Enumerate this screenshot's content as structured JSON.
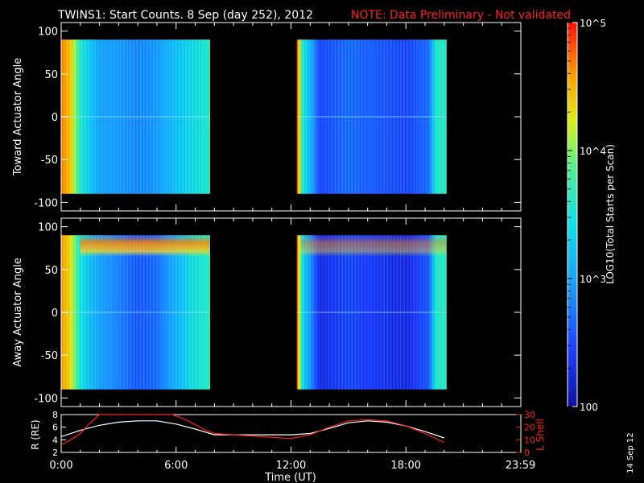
{
  "header": {
    "title": "TWINS1: Start Counts.  8 Sep (day 252), 2012",
    "note": "NOTE: Data Preliminary - Not validated"
  },
  "side_date": "14 Sep 12",
  "colorbar": {
    "label": "LOG10(Total Starts per Scan)",
    "tick_labels": [
      "10^5",
      "10^4",
      "10^3",
      "100"
    ],
    "range": [
      100,
      100000
    ],
    "scale": "log"
  },
  "colors": {
    "background": "#000000",
    "axes": "#ffffff",
    "note": "#ff2020",
    "lshell": "#ff2020"
  },
  "chart_data": [
    {
      "type": "heatmap",
      "panel": "toward",
      "ylabel": "Toward Actuator Angle",
      "ylim": [
        -110,
        110
      ],
      "ytick_labels": [
        "100",
        "50",
        "0",
        "-50",
        "-100"
      ],
      "data_bounds": [
        -90,
        90
      ],
      "xlim": [
        0,
        24
      ],
      "data_intervals_hours": [
        [
          0,
          7.75
        ],
        [
          12.3,
          20.1
        ]
      ],
      "log_counts_profile_by_hour": [
        {
          "t": 0.0,
          "v": 4.7
        },
        {
          "t": 0.5,
          "v": 4.4
        },
        {
          "t": 1.0,
          "v": 3.6
        },
        {
          "t": 1.5,
          "v": 3.25
        },
        {
          "t": 2.0,
          "v": 3.0
        },
        {
          "t": 3.0,
          "v": 2.95
        },
        {
          "t": 4.0,
          "v": 2.85
        },
        {
          "t": 5.0,
          "v": 2.95
        },
        {
          "t": 6.0,
          "v": 3.2
        },
        {
          "t": 7.0,
          "v": 3.45
        },
        {
          "t": 7.75,
          "v": 3.6
        },
        {
          "t": 12.3,
          "v": 4.9
        },
        {
          "t": 12.6,
          "v": 3.6
        },
        {
          "t": 13.5,
          "v": 2.5
        },
        {
          "t": 15.0,
          "v": 2.7
        },
        {
          "t": 16.5,
          "v": 2.6
        },
        {
          "t": 18.0,
          "v": 2.5
        },
        {
          "t": 19.2,
          "v": 2.7
        },
        {
          "t": 19.6,
          "v": 3.6
        },
        {
          "t": 20.1,
          "v": 3.6
        }
      ]
    },
    {
      "type": "heatmap",
      "panel": "away",
      "ylabel": "Away Actuator Angle",
      "ylim": [
        -110,
        110
      ],
      "ytick_labels": [
        "100",
        "50",
        "0",
        "-50",
        "-100"
      ],
      "data_bounds": [
        -90,
        90
      ],
      "xlim": [
        0,
        24
      ],
      "data_intervals_hours": [
        [
          0,
          7.75
        ],
        [
          12.3,
          20.1
        ]
      ],
      "enhanced_band_angle_range": [
        65,
        90
      ],
      "log_counts_profile_by_hour": [
        {
          "t": 0.0,
          "v": 4.6
        },
        {
          "t": 0.5,
          "v": 4.3
        },
        {
          "t": 1.0,
          "v": 3.5
        },
        {
          "t": 1.5,
          "v": 3.2
        },
        {
          "t": 2.0,
          "v": 3.0
        },
        {
          "t": 3.0,
          "v": 2.8
        },
        {
          "t": 4.0,
          "v": 2.6
        },
        {
          "t": 5.0,
          "v": 2.7
        },
        {
          "t": 6.0,
          "v": 3.1
        },
        {
          "t": 7.0,
          "v": 3.5
        },
        {
          "t": 7.75,
          "v": 3.6
        },
        {
          "t": 12.3,
          "v": 4.9
        },
        {
          "t": 12.6,
          "v": 3.4
        },
        {
          "t": 13.5,
          "v": 2.3
        },
        {
          "t": 15.0,
          "v": 2.5
        },
        {
          "t": 16.5,
          "v": 2.4
        },
        {
          "t": 18.0,
          "v": 2.3
        },
        {
          "t": 19.2,
          "v": 2.6
        },
        {
          "t": 19.6,
          "v": 3.6
        },
        {
          "t": 20.1,
          "v": 3.6
        }
      ]
    },
    {
      "type": "line",
      "panel": "orbit",
      "xlabel": "Time (UT)",
      "xlim": [
        0,
        24
      ],
      "xtick_labels": [
        "0:00",
        "6:00",
        "12:00",
        "18:00",
        "23:59"
      ],
      "ylabel_left": "R (RE)",
      "ylim_left": [
        2,
        8
      ],
      "ytick_labels_left": [
        "2",
        "4",
        "6",
        "8"
      ],
      "ylabel_right": "L Shell",
      "ylim_right": [
        0,
        30
      ],
      "ytick_labels_right": [
        "0",
        "10",
        "20",
        "30"
      ],
      "series": [
        {
          "name": "R",
          "axis": "left",
          "x": [
            0,
            1,
            2,
            3,
            4,
            5,
            6,
            7,
            8,
            9,
            10,
            11,
            12,
            13,
            14,
            15,
            16,
            17,
            18,
            19,
            20
          ],
          "y": [
            4.5,
            5.5,
            6.3,
            6.8,
            7.0,
            7.0,
            6.5,
            5.7,
            4.8,
            4.8,
            4.8,
            4.8,
            4.8,
            5.0,
            5.8,
            6.7,
            7.0,
            6.8,
            6.2,
            5.3,
            4.3
          ]
        },
        {
          "name": "L Shell",
          "axis": "right",
          "x": [
            0,
            0.5,
            1,
            1.5,
            2,
            2.3,
            5.8,
            6.5,
            7.5,
            8,
            10,
            12,
            13,
            14,
            15,
            16,
            17,
            18,
            19,
            20
          ],
          "y": [
            6,
            10,
            15,
            23,
            30,
            30,
            30,
            26,
            18,
            15,
            13,
            11,
            14,
            20,
            25,
            26,
            25,
            21,
            15,
            8
          ]
        }
      ]
    }
  ]
}
